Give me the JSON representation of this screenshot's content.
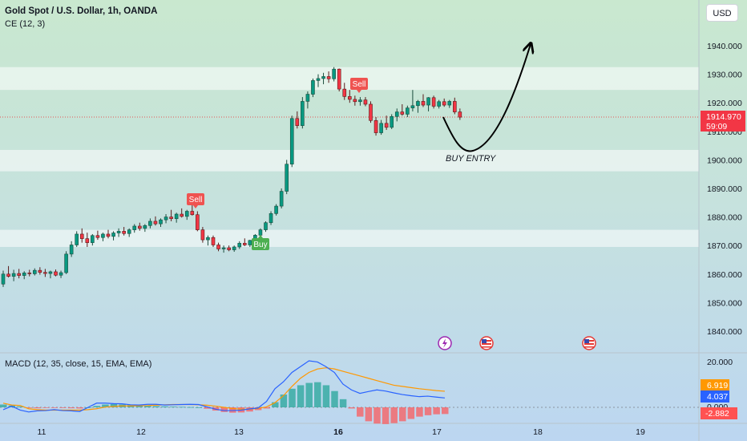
{
  "header": {
    "title": "Gold Spot / U.S. Dollar, 1h, OANDA",
    "indicator": "CE (12, 3)",
    "currency": "USD"
  },
  "macd": {
    "label": "MACD (12, 35, close, 15, EMA, EMA)",
    "tick_top": "20.000",
    "tick_zero": "0.000",
    "signal_value": "6.919",
    "macd_value": "4.037",
    "hist_value": "-2.882",
    "colors": {
      "signal": "#ff9800",
      "macd": "#2962ff",
      "hist_pos": "#26a69a",
      "hist_neg": "#ff5252"
    }
  },
  "annotations": {
    "buy_entry": "BUY ENTRY",
    "sell_label": "Sell",
    "buy_label": "Buy",
    "price_label": "1914.970",
    "countdown": "59:09"
  },
  "chart_data": {
    "type": "candlestick",
    "title": "Gold Spot / U.S. Dollar, 1h, OANDA",
    "y_ticks": [
      "1840.000",
      "1850.000",
      "1860.000",
      "1870.000",
      "1880.000",
      "1890.000",
      "1900.000",
      "1910.000",
      "1920.000",
      "1930.000",
      "1940.000"
    ],
    "x_ticks": [
      "11",
      "12",
      "13",
      "16",
      "17",
      "18",
      "19"
    ],
    "ylim": [
      1835,
      1948
    ],
    "last_price": 1914.97,
    "zones": [
      [
        1924.5,
        1932.5
      ],
      [
        1896,
        1903.5
      ],
      [
        1869.5,
        1875.5
      ]
    ],
    "signals": [
      {
        "label": "Sell",
        "x": "12 ~14:00",
        "price": 1885
      },
      {
        "label": "Sell",
        "x": "15 ~21:00",
        "price": 1925
      },
      {
        "label": "Buy",
        "x": "13 ~14:00",
        "price": 1873
      }
    ],
    "ohlc": [
      [
        1856.5,
        1861.2,
        1855.5,
        1860.0
      ],
      [
        1860.0,
        1862.8,
        1858.8,
        1859.2
      ],
      [
        1859.2,
        1861.5,
        1857.5,
        1860.2
      ],
      [
        1860.2,
        1861.8,
        1858.5,
        1859.5
      ],
      [
        1859.5,
        1861.0,
        1858.2,
        1860.4
      ],
      [
        1860.4,
        1861.5,
        1859.2,
        1860.1
      ],
      [
        1860.1,
        1862.0,
        1859.5,
        1861.3
      ],
      [
        1861.3,
        1862.4,
        1859.8,
        1860.6
      ],
      [
        1860.6,
        1861.8,
        1859.0,
        1860.2
      ],
      [
        1860.2,
        1861.2,
        1858.5,
        1860.8
      ],
      [
        1860.8,
        1861.6,
        1859.2,
        1859.6
      ],
      [
        1859.6,
        1861.2,
        1858.6,
        1860.5
      ],
      [
        1860.5,
        1868.0,
        1860.0,
        1867.0
      ],
      [
        1867.0,
        1871.5,
        1866.0,
        1870.2
      ],
      [
        1870.2,
        1875.0,
        1869.5,
        1874.0
      ],
      [
        1874.0,
        1876.0,
        1871.0,
        1872.4
      ],
      [
        1872.4,
        1874.5,
        1869.5,
        1871.0
      ],
      [
        1871.0,
        1874.0,
        1870.0,
        1873.5
      ],
      [
        1873.5,
        1875.2,
        1872.0,
        1872.8
      ],
      [
        1872.8,
        1874.5,
        1871.5,
        1874.0
      ],
      [
        1874.0,
        1875.5,
        1872.5,
        1873.2
      ],
      [
        1873.2,
        1875.0,
        1871.8,
        1874.4
      ],
      [
        1874.4,
        1876.0,
        1873.0,
        1875.0
      ],
      [
        1875.0,
        1876.5,
        1873.5,
        1874.2
      ],
      [
        1874.2,
        1876.0,
        1873.0,
        1875.5
      ],
      [
        1875.5,
        1877.5,
        1874.5,
        1876.8
      ],
      [
        1876.8,
        1878.0,
        1875.2,
        1876.0
      ],
      [
        1876.0,
        1877.5,
        1874.8,
        1877.0
      ],
      [
        1877.0,
        1879.5,
        1876.0,
        1878.5
      ],
      [
        1878.5,
        1880.2,
        1877.0,
        1877.6
      ],
      [
        1877.6,
        1879.5,
        1876.5,
        1879.0
      ],
      [
        1879.0,
        1881.0,
        1877.8,
        1880.0
      ],
      [
        1880.0,
        1882.5,
        1878.5,
        1879.4
      ],
      [
        1879.4,
        1881.5,
        1878.0,
        1881.0
      ],
      [
        1881.0,
        1883.0,
        1879.8,
        1880.2
      ],
      [
        1880.2,
        1882.5,
        1879.0,
        1882.0
      ],
      [
        1882.0,
        1885.0,
        1880.5,
        1880.8
      ],
      [
        1880.8,
        1882.0,
        1875.0,
        1875.5
      ],
      [
        1875.5,
        1876.5,
        1871.0,
        1872.0
      ],
      [
        1872.0,
        1873.5,
        1870.0,
        1872.8
      ],
      [
        1872.8,
        1873.5,
        1869.5,
        1870.2
      ],
      [
        1870.2,
        1871.0,
        1868.0,
        1868.8
      ],
      [
        1868.8,
        1870.0,
        1867.5,
        1869.2
      ],
      [
        1869.2,
        1870.0,
        1868.0,
        1868.5
      ],
      [
        1868.5,
        1870.0,
        1867.8,
        1869.5
      ],
      [
        1869.5,
        1871.5,
        1868.8,
        1870.8
      ],
      [
        1870.8,
        1872.5,
        1869.8,
        1870.2
      ],
      [
        1870.2,
        1872.0,
        1869.5,
        1871.8
      ],
      [
        1871.8,
        1874.0,
        1871.0,
        1873.6
      ],
      [
        1873.6,
        1876.0,
        1873.0,
        1875.5
      ],
      [
        1875.5,
        1878.5,
        1874.8,
        1878.0
      ],
      [
        1878.0,
        1882.0,
        1877.2,
        1881.2
      ],
      [
        1881.2,
        1884.5,
        1880.5,
        1883.8
      ],
      [
        1883.8,
        1890.0,
        1883.0,
        1889.0
      ],
      [
        1889.0,
        1900.0,
        1888.0,
        1898.5
      ],
      [
        1898.5,
        1915.5,
        1897.5,
        1914.5
      ],
      [
        1914.5,
        1917.0,
        1911.0,
        1912.0
      ],
      [
        1912.0,
        1922.0,
        1911.0,
        1920.5
      ],
      [
        1920.5,
        1924.0,
        1918.0,
        1923.0
      ],
      [
        1923.0,
        1928.5,
        1922.0,
        1927.8
      ],
      [
        1927.8,
        1930.0,
        1925.5,
        1928.5
      ],
      [
        1928.5,
        1930.5,
        1926.5,
        1929.2
      ],
      [
        1929.2,
        1931.0,
        1927.0,
        1928.4
      ],
      [
        1928.4,
        1932.5,
        1927.5,
        1931.8
      ],
      [
        1931.8,
        1932.0,
        1924.0,
        1924.8
      ],
      [
        1924.8,
        1927.0,
        1921.0,
        1922.2
      ],
      [
        1922.2,
        1924.5,
        1920.0,
        1921.2
      ],
      [
        1921.2,
        1922.5,
        1919.0,
        1920.4
      ],
      [
        1920.4,
        1922.0,
        1919.0,
        1921.0
      ],
      [
        1921.0,
        1922.0,
        1918.8,
        1919.5
      ],
      [
        1919.5,
        1920.5,
        1913.0,
        1913.8
      ],
      [
        1913.8,
        1915.0,
        1908.5,
        1909.5
      ],
      [
        1909.5,
        1914.0,
        1908.8,
        1912.8
      ],
      [
        1912.8,
        1915.5,
        1910.5,
        1911.4
      ],
      [
        1911.4,
        1916.0,
        1910.8,
        1915.2
      ],
      [
        1915.2,
        1918.0,
        1913.5,
        1916.8
      ],
      [
        1916.8,
        1919.5,
        1915.5,
        1916.0
      ],
      [
        1916.0,
        1919.0,
        1915.0,
        1918.2
      ],
      [
        1918.2,
        1924.5,
        1917.0,
        1919.0
      ],
      [
        1919.0,
        1921.0,
        1916.5,
        1920.5
      ],
      [
        1920.5,
        1923.0,
        1918.5,
        1919.2
      ],
      [
        1919.2,
        1922.0,
        1917.0,
        1921.8
      ],
      [
        1921.8,
        1922.5,
        1918.0,
        1918.8
      ],
      [
        1918.8,
        1921.0,
        1918.0,
        1920.4
      ],
      [
        1920.4,
        1921.5,
        1918.6,
        1919.2
      ],
      [
        1919.2,
        1921.0,
        1918.2,
        1920.5
      ],
      [
        1920.5,
        1921.8,
        1916.0,
        1916.8
      ],
      [
        1916.8,
        1918.0,
        1914.0,
        1914.97
      ]
    ],
    "projection": "drawn arrow from last bar down to ~1902.5 (BUY ENTRY) then up to ~1941",
    "macd": {
      "macd_line": [
        -1,
        0.5,
        -1.2,
        -2,
        -1.5,
        -1.4,
        -1,
        -1.4,
        -1.5,
        -1.8,
        0,
        1.8,
        1.8,
        1.6,
        1.5,
        1.1,
        1,
        1.3,
        1.3,
        1,
        1.1,
        1.2,
        1.3,
        1.2,
        0.2,
        -0.8,
        -1.4,
        -1.4,
        -1.2,
        -0.7,
        -0.3,
        2.5,
        8,
        11,
        15,
        17.5,
        20,
        19.5,
        17.5,
        15,
        10,
        7.5,
        6,
        6.8,
        7.5,
        7,
        6.2,
        5.5,
        5,
        4.6,
        4.8,
        4.4,
        4.037
      ],
      "signal_line": [
        1.8,
        1,
        0.8,
        -0.6,
        -1,
        -1.2,
        -1.2,
        -1.2,
        -1.2,
        -1.2,
        -1,
        -0.6,
        0.1,
        0.4,
        0.6,
        0.6,
        0.7,
        0.75,
        0.9,
        1.1,
        1.2,
        1.2,
        1.2,
        1.1,
        0.9,
        0.5,
        0,
        -0.5,
        -0.8,
        -0.8,
        -0.5,
        0.2,
        2,
        5,
        9,
        12.5,
        15,
        16.5,
        17,
        16.5,
        15.5,
        14.5,
        13.5,
        12.5,
        11.5,
        10.5,
        9.5,
        9,
        8.5,
        8,
        7.6,
        7.2,
        6.919
      ],
      "histogram": [
        1.2,
        0.8,
        0.4,
        -0.2,
        -0.4,
        -0.2,
        -0.2,
        -0.3,
        -0.4,
        -0.5,
        0,
        0.6,
        1.2,
        1.4,
        1.2,
        1,
        0.8,
        0.6,
        0.5,
        0.4,
        0.3,
        0.2,
        0.1,
        0,
        -0.6,
        -1.4,
        -2,
        -2.3,
        -2.2,
        -1.8,
        -1.2,
        -0.5,
        2.2,
        5.5,
        8,
        9.5,
        10.5,
        10.8,
        9.5,
        7,
        3.5,
        -0.5,
        -4,
        -6,
        -7,
        -7.2,
        -6.8,
        -6,
        -5,
        -4,
        -3.4,
        -3,
        -2.882
      ]
    }
  }
}
